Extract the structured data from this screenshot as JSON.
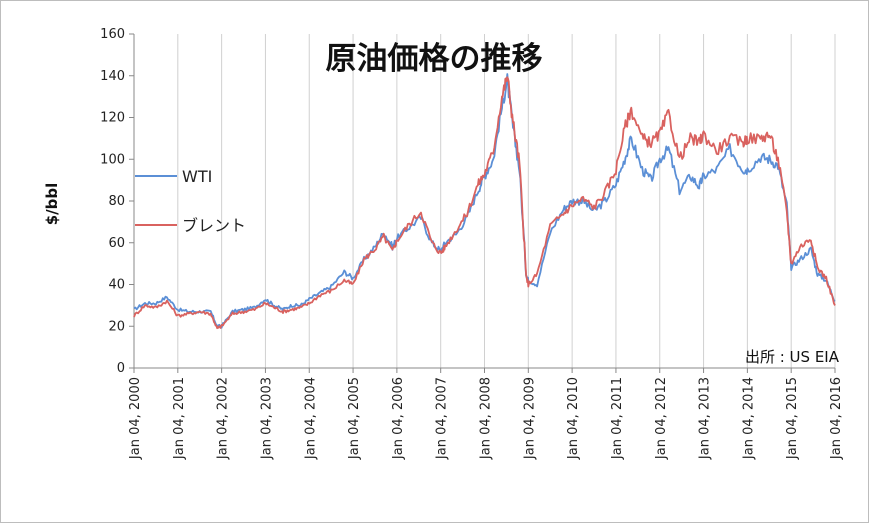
{
  "chart_data": {
    "type": "line",
    "title": "原油価格の推移",
    "ylabel": "$/bbl",
    "xlabel": "",
    "source_note": "出所 : US EIA",
    "ylim": [
      0,
      160
    ],
    "yticks": [
      0,
      20,
      40,
      60,
      80,
      100,
      120,
      140,
      160
    ],
    "xlim": [
      "2000-01-04",
      "2016-01-04"
    ],
    "xtick_labels": [
      "Jan 04, 2000",
      "Jan 04, 2001",
      "Jan 04, 2002",
      "Jan 04, 2003",
      "Jan 04, 2004",
      "Jan 04, 2005",
      "Jan 04, 2006",
      "Jan 04, 2007",
      "Jan 04, 2008",
      "Jan 04, 2009",
      "Jan 04, 2010",
      "Jan 04, 2011",
      "Jan 04, 2012",
      "Jan 04, 2013",
      "Jan 04, 2014",
      "Jan 04, 2015",
      "Jan 04, 2016"
    ],
    "grid": "vertical",
    "legend": "left",
    "series": [
      {
        "name": "WTI",
        "color": "#5b8fd6",
        "x": [
          2000.0,
          2000.25,
          2000.5,
          2000.75,
          2001.0,
          2001.25,
          2001.5,
          2001.75,
          2001.9,
          2002.0,
          2002.25,
          2002.5,
          2002.75,
          2003.0,
          2003.2,
          2003.4,
          2003.6,
          2003.8,
          2004.0,
          2004.25,
          2004.5,
          2004.8,
          2005.0,
          2005.25,
          2005.5,
          2005.7,
          2005.9,
          2006.0,
          2006.25,
          2006.55,
          2006.8,
          2007.0,
          2007.1,
          2007.35,
          2007.6,
          2007.85,
          2008.0,
          2008.2,
          2008.4,
          2008.52,
          2008.65,
          2008.8,
          2008.95,
          2009.0,
          2009.2,
          2009.5,
          2009.8,
          2010.0,
          2010.25,
          2010.5,
          2010.75,
          2011.0,
          2011.2,
          2011.35,
          2011.6,
          2011.8,
          2012.0,
          2012.2,
          2012.45,
          2012.7,
          2012.9,
          2013.0,
          2013.3,
          2013.6,
          2013.9,
          2014.0,
          2014.3,
          2014.5,
          2014.7,
          2014.9,
          2015.0,
          2015.2,
          2015.45,
          2015.6,
          2015.8,
          2016.0
        ],
        "values": [
          28,
          31,
          31,
          34,
          28,
          27,
          27,
          27,
          20,
          20,
          27,
          28,
          29,
          33,
          30,
          28,
          30,
          30,
          33,
          36,
          39,
          46,
          43,
          52,
          58,
          65,
          58,
          62,
          67,
          72,
          60,
          56,
          60,
          64,
          72,
          85,
          92,
          100,
          125,
          138,
          115,
          95,
          45,
          42,
          40,
          65,
          76,
          80,
          80,
          75,
          80,
          88,
          100,
          110,
          95,
          90,
          100,
          105,
          85,
          92,
          87,
          92,
          95,
          105,
          95,
          95,
          101,
          100,
          97,
          78,
          48,
          52,
          57,
          45,
          42,
          32
        ]
      },
      {
        "name": "ブレント",
        "color": "#d9625f",
        "x": [
          2000.0,
          2000.25,
          2000.5,
          2000.75,
          2001.0,
          2001.25,
          2001.5,
          2001.75,
          2001.9,
          2002.0,
          2002.25,
          2002.5,
          2002.75,
          2003.0,
          2003.2,
          2003.4,
          2003.6,
          2003.8,
          2004.0,
          2004.25,
          2004.5,
          2004.8,
          2005.0,
          2005.25,
          2005.5,
          2005.7,
          2005.9,
          2006.0,
          2006.25,
          2006.55,
          2006.8,
          2007.0,
          2007.1,
          2007.35,
          2007.6,
          2007.85,
          2008.0,
          2008.2,
          2008.4,
          2008.52,
          2008.65,
          2008.8,
          2008.95,
          2009.0,
          2009.2,
          2009.5,
          2009.8,
          2010.0,
          2010.25,
          2010.5,
          2010.75,
          2011.0,
          2011.2,
          2011.35,
          2011.6,
          2011.8,
          2012.0,
          2012.2,
          2012.45,
          2012.7,
          2012.9,
          2013.0,
          2013.3,
          2013.6,
          2013.9,
          2014.0,
          2014.3,
          2014.5,
          2014.7,
          2014.9,
          2015.0,
          2015.2,
          2015.45,
          2015.6,
          2015.8,
          2016.0
        ],
        "values": [
          25,
          30,
          29,
          32,
          25,
          26,
          27,
          26,
          19,
          20,
          26,
          27,
          28,
          31,
          29,
          27,
          28,
          29,
          31,
          35,
          37,
          42,
          40,
          52,
          57,
          63,
          56,
          61,
          68,
          75,
          60,
          55,
          58,
          66,
          74,
          88,
          93,
          104,
          130,
          140,
          118,
          98,
          44,
          40,
          45,
          68,
          74,
          78,
          81,
          77,
          84,
          95,
          115,
          124,
          110,
          108,
          112,
          122,
          100,
          110,
          108,
          112,
          104,
          110,
          108,
          110,
          110,
          112,
          100,
          75,
          50,
          58,
          62,
          48,
          43,
          30
        ]
      }
    ]
  }
}
